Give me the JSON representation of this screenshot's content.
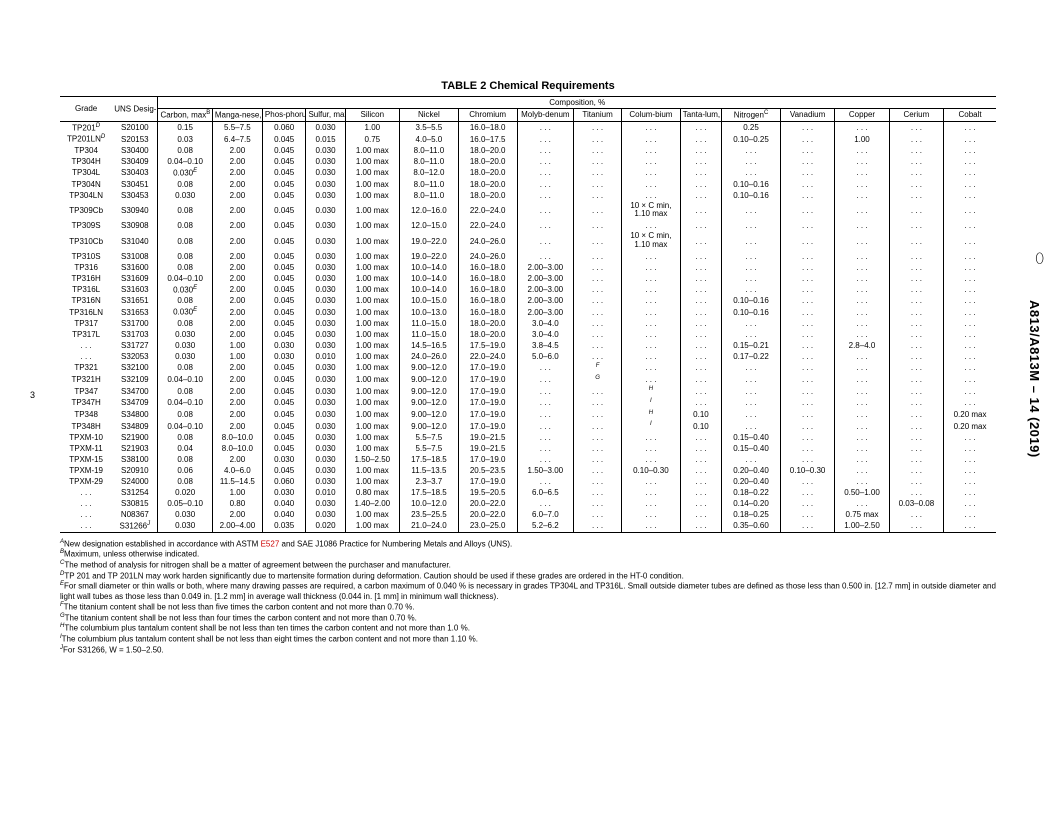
{
  "title": "TABLE 2 Chemical Requirements",
  "comp_header": "Composition, %",
  "sidemark": "A813/A813M – 14 (2019)",
  "side_glyph": "⬯",
  "pagenum": "3",
  "cols": {
    "grade": "Grade",
    "uns": "UNS Desig-nation",
    "carbon": "Carbon, max",
    "mn": "Manga-nese, max",
    "p": "Phos-phorus, max",
    "s": "Sulfur, max",
    "si": "Silicon",
    "ni": "Nickel",
    "cr": "Chromium",
    "mo": "Molyb-denum",
    "ti": "Titanium",
    "cb": "Colum-bium",
    "ta": "Tanta-lum, max",
    "n": "Nitrogen",
    "v": "Vanadium",
    "cu": "Copper",
    "ce": "Cerium",
    "co": "Cobalt"
  },
  "sup": {
    "A": "A",
    "B": "B",
    "C": "C",
    "D": "D",
    "E": "E",
    "F": "F",
    "G": "G",
    "H": "H",
    "I": "I",
    "J": "J"
  },
  "rows": [
    [
      "TP201",
      "D",
      "S20100",
      "0.15",
      "5.5–7.5",
      "0.060",
      "0.030",
      "1.00",
      "3.5–5.5",
      "16.0–18.0",
      ". . .",
      ". . .",
      ". . .",
      ". . .",
      "0.25",
      ". . .",
      ". . .",
      ". . .",
      ". . ."
    ],
    [
      "TP201LN",
      "D",
      "S20153",
      "0.03",
      "6.4–7.5",
      "0.045",
      "0.015",
      "0.75",
      "4.0–5.0",
      "16.0–17.5",
      ". . .",
      ". . .",
      ". . .",
      ". . .",
      "0.10–0.25",
      ". . .",
      "1.00",
      ". . .",
      ". . ."
    ],
    [
      "TP304",
      "",
      "S30400",
      "0.08",
      "2.00",
      "0.045",
      "0.030",
      "1.00 max",
      "8.0–11.0",
      "18.0–20.0",
      ". . .",
      ". . .",
      ". . .",
      ". . .",
      ". . .",
      ". . .",
      ". . .",
      ". . .",
      ". . ."
    ],
    [
      "TP304H",
      "",
      "S30409",
      "0.04–0.10",
      "2.00",
      "0.045",
      "0.030",
      "1.00 max",
      "8.0–11.0",
      "18.0–20.0",
      ". . .",
      ". . .",
      ". . .",
      ". . .",
      ". . .",
      ". . .",
      ". . .",
      ". . .",
      ". . ."
    ],
    [
      "TP304L",
      "",
      "S30403",
      "0.030",
      "E",
      "2.00",
      "0.045",
      "0.030",
      "1.00 max",
      "8.0–12.0",
      "18.0–20.0",
      ". . .",
      ". . .",
      ". . .",
      ". . .",
      ". . .",
      ". . .",
      ". . .",
      ". . .",
      ". . ."
    ],
    [
      "TP304N",
      "",
      "S30451",
      "0.08",
      "2.00",
      "0.045",
      "0.030",
      "1.00 max",
      "8.0–11.0",
      "18.0–20.0",
      ". . .",
      ". . .",
      ". . .",
      ". . .",
      "0.10–0.16",
      ". . .",
      ". . .",
      ". . .",
      ". . ."
    ],
    [
      "TP304LN",
      "",
      "S30453",
      "0.030",
      "2.00",
      "0.045",
      "0.030",
      "1.00 max",
      "8.0–11.0",
      "18.0–20.0",
      ". . .",
      ". . .",
      ". . .",
      ". . .",
      "0.10–0.16",
      ". . .",
      ". . .",
      ". . .",
      ". . ."
    ],
    [
      "TP309Cb",
      "",
      "S30940",
      "0.08",
      "2.00",
      "0.045",
      "0.030",
      "1.00 max",
      "12.0–16.0",
      "22.0–24.0",
      ". . .",
      ". . .",
      "10 × C min, 1.10 max",
      ". . .",
      ". . .",
      ". . .",
      ". . .",
      ". . .",
      ". . ."
    ],
    [
      "TP309S",
      "",
      "S30908",
      "0.08",
      "2.00",
      "0.045",
      "0.030",
      "1.00 max",
      "12.0–15.0",
      "22.0–24.0",
      ". . .",
      ". . .",
      ". . .",
      ". . .",
      ". . .",
      ". . .",
      ". . .",
      ". . .",
      ". . ."
    ],
    [
      "TP310Cb",
      "",
      "S31040",
      "0.08",
      "2.00",
      "0.045",
      "0.030",
      "1.00 max",
      "19.0–22.0",
      "24.0–26.0",
      ". . .",
      ". . .",
      "10 × C min, 1.10 max",
      ". . .",
      ". . .",
      ". . .",
      ". . .",
      ". . .",
      ". . ."
    ],
    [
      "TP310S",
      "",
      "S31008",
      "0.08",
      "2.00",
      "0.045",
      "0.030",
      "1.00 max",
      "19.0–22.0",
      "24.0–26.0",
      ". . .",
      ". . .",
      ". . .",
      ". . .",
      ". . .",
      ". . .",
      ". . .",
      ". . .",
      ". . ."
    ],
    [
      "TP316",
      "",
      "S31600",
      "0.08",
      "2.00",
      "0.045",
      "0.030",
      "1.00 max",
      "10.0–14.0",
      "16.0–18.0",
      "2.00–3.00",
      ". . .",
      ". . .",
      ". . .",
      ". . .",
      ". . .",
      ". . .",
      ". . .",
      ". . ."
    ],
    [
      "TP316H",
      "",
      "S31609",
      "0.04–0.10",
      "2.00",
      "0.045",
      "0.030",
      "1.00 max",
      "10.0–14.0",
      "16.0–18.0",
      "2.00–3.00",
      ". . .",
      ". . .",
      ". . .",
      ". . .",
      ". . .",
      ". . .",
      ". . .",
      ". . ."
    ],
    [
      "TP316L",
      "",
      "S31603",
      "0.030",
      "E",
      "2.00",
      "0.045",
      "0.030",
      "1.00 max",
      "10.0–14.0",
      "16.0–18.0",
      "2.00–3.00",
      ". . .",
      ". . .",
      ". . .",
      ". . .",
      ". . .",
      ". . .",
      ". . .",
      ". . ."
    ],
    [
      "TP316N",
      "",
      "S31651",
      "0.08",
      "2.00",
      "0.045",
      "0.030",
      "1.00 max",
      "10.0–15.0",
      "16.0–18.0",
      "2.00–3.00",
      ". . .",
      ". . .",
      ". . .",
      "0.10–0.16",
      ". . .",
      ". . .",
      ". . .",
      ". . ."
    ],
    [
      "TP316LN",
      "",
      "S31653",
      "0.030",
      "E",
      "2.00",
      "0.045",
      "0.030",
      "1.00 max",
      "10.0–13.0",
      "16.0–18.0",
      "2.00–3.00",
      ". . .",
      ". . .",
      ". . .",
      "0.10–0.16",
      ". . .",
      ". . .",
      ". . .",
      ". . ."
    ],
    [
      "TP317",
      "",
      "S31700",
      "0.08",
      "2.00",
      "0.045",
      "0.030",
      "1.00 max",
      "11.0–15.0",
      "18.0–20.0",
      "3.0–4.0",
      ". . .",
      ". . .",
      ". . .",
      ". . .",
      ". . .",
      ". . .",
      ". . .",
      ". . ."
    ],
    [
      "TP317L",
      "",
      "S31703",
      "0.030",
      "2.00",
      "0.045",
      "0.030",
      "1.00 max",
      "11.0–15.0",
      "18.0–20.0",
      "3.0–4.0",
      ". . .",
      ". . .",
      ". . .",
      ". . .",
      ". . .",
      ". . .",
      ". . .",
      ". . ."
    ],
    [
      ". . .",
      "",
      "S31727",
      "0.030",
      "1.00",
      "0.030",
      "0.030",
      "1.00 max",
      "14.5–16.5",
      "17.5–19.0",
      "3.8–4.5",
      ". . .",
      ". . .",
      ". . .",
      "0.15–0.21",
      ". . .",
      "2.8–4.0",
      ". . .",
      ". . ."
    ],
    [
      ". . .",
      "",
      "S32053",
      "0.030",
      "1.00",
      "0.030",
      "0.010",
      "1.00 max",
      "24.0–26.0",
      "22.0–24.0",
      "5.0–6.0",
      ". . .",
      ". . .",
      ". . .",
      "0.17–0.22",
      ". . .",
      ". . .",
      ". . .",
      ". . ."
    ],
    [
      "TP321",
      "",
      "S32100",
      "0.08",
      "2.00",
      "0.045",
      "0.030",
      "1.00 max",
      "9.00–12.0",
      "17.0–19.0",
      ". . .",
      "F",
      ". . .",
      ". . .",
      ". . .",
      ". . .",
      ". . .",
      ". . .",
      ". . ."
    ],
    [
      "TP321H",
      "",
      "S32109",
      "0.04–0.10",
      "2.00",
      "0.045",
      "0.030",
      "1.00 max",
      "9.00–12.0",
      "17.0–19.0",
      ". . .",
      "G",
      ". . .",
      ". . .",
      ". . .",
      ". . .",
      ". . .",
      ". . .",
      ". . ."
    ],
    [
      "TP347",
      "",
      "S34700",
      "0.08",
      "2.00",
      "0.045",
      "0.030",
      "1.00 max",
      "9.00–12.0",
      "17.0–19.0",
      ". . .",
      ". . .",
      "H",
      ". . .",
      ". . .",
      ". . .",
      ". . .",
      ". . .",
      ". . ."
    ],
    [
      "TP347H",
      "",
      "S34709",
      "0.04–0.10",
      "2.00",
      "0.045",
      "0.030",
      "1.00 max",
      "9.00–12.0",
      "17.0–19.0",
      ". . .",
      ". . .",
      "I",
      ". . .",
      ". . .",
      ". . .",
      ". . .",
      ". . .",
      ". . ."
    ],
    [
      "TP348",
      "",
      "S34800",
      "0.08",
      "2.00",
      "0.045",
      "0.030",
      "1.00 max",
      "9.00–12.0",
      "17.0–19.0",
      ". . .",
      ". . .",
      "H",
      "0.10",
      ". . .",
      ". . .",
      ". . .",
      ". . .",
      "0.20 max"
    ],
    [
      "TP348H",
      "",
      "S34809",
      "0.04–0.10",
      "2.00",
      "0.045",
      "0.030",
      "1.00 max",
      "9.00–12.0",
      "17.0–19.0",
      ". . .",
      ". . .",
      "I",
      "0.10",
      ". . .",
      ". . .",
      ". . .",
      ". . .",
      "0.20 max"
    ],
    [
      "TPXM-10",
      "",
      "S21900",
      "0.08",
      "8.0–10.0",
      "0.045",
      "0.030",
      "1.00 max",
      "5.5–7.5",
      "19.0–21.5",
      ". . .",
      ". . .",
      ". . .",
      ". . .",
      "0.15–0.40",
      ". . .",
      ". . .",
      ". . .",
      ". . ."
    ],
    [
      "TPXM-11",
      "",
      "S21903",
      "0.04",
      "8.0–10.0",
      "0.045",
      "0.030",
      "1.00 max",
      "5.5–7.5",
      "19.0–21.5",
      ". . .",
      ". . .",
      ". . .",
      ". . .",
      "0.15–0.40",
      ". . .",
      ". . .",
      ". . .",
      ". . ."
    ],
    [
      "TPXM-15",
      "",
      "S38100",
      "0.08",
      "2.00",
      "0.030",
      "0.030",
      "1.50–2.50",
      "17.5–18.5",
      "17.0–19.0",
      ". . .",
      ". . .",
      ". . .",
      ". . .",
      ". . .",
      ". . .",
      ". . .",
      ". . .",
      ". . ."
    ],
    [
      "TPXM-19",
      "",
      "S20910",
      "0.06",
      "4.0–6.0",
      "0.045",
      "0.030",
      "1.00 max",
      "11.5–13.5",
      "20.5–23.5",
      "1.50–3.00",
      ". . .",
      "0.10–0.30",
      ". . .",
      "0.20–0.40",
      "0.10–0.30",
      ". . .",
      ". . .",
      ". . ."
    ],
    [
      "TPXM-29",
      "",
      "S24000",
      "0.08",
      "11.5–14.5",
      "0.060",
      "0.030",
      "1.00 max",
      "2.3–3.7",
      "17.0–19.0",
      ". . .",
      ". . .",
      ". . .",
      ". . .",
      "0.20–0.40",
      ". . .",
      ". . .",
      ". . .",
      ". . ."
    ],
    [
      ". . .",
      "",
      "S31254",
      "0.020",
      "1.00",
      "0.030",
      "0.010",
      "0.80 max",
      "17.5–18.5",
      "19.5–20.5",
      "6.0–6.5",
      ". . .",
      ". . .",
      ". . .",
      "0.18–0.22",
      ". . .",
      "0.50–1.00",
      ". . .",
      ". . ."
    ],
    [
      ". . .",
      "",
      "S30815",
      "0.05–0.10",
      "0.80",
      "0.040",
      "0.030",
      "1.40–2.00",
      "10.0–12.0",
      "20.0–22.0",
      ". . .",
      ". . .",
      ". . .",
      ". . .",
      "0.14–0.20",
      ". . .",
      ". . .",
      "0.03–0.08",
      ". . ."
    ],
    [
      ". . .",
      "",
      "N08367",
      "0.030",
      "2.00",
      "0.040",
      "0.030",
      "1.00 max",
      "23.5–25.5",
      "20.0–22.0",
      "6.0–7.0",
      ". . .",
      ". . .",
      ". . .",
      "0.18–0.25",
      ". . .",
      "0.75 max",
      ". . .",
      ". . ."
    ],
    [
      ". . .",
      "",
      "S31266",
      "J",
      "0.030",
      "2.00–4.00",
      "0.035",
      "0.020",
      "1.00 max",
      "21.0–24.0",
      "23.0–25.0",
      "5.2–6.2",
      ". . .",
      ". . .",
      ". . .",
      "0.35–0.60",
      ". . .",
      "1.00–2.50",
      ". . .",
      ". . ."
    ]
  ],
  "special_carbon_sup_rows": [
    4,
    13,
    15
  ],
  "special_uns_sup_rows": [
    34
  ],
  "cb_multiline_rows": [
    7,
    9
  ],
  "ti_letter_rows": {
    "20": "F",
    "21": "G"
  },
  "cb_letter_rows": {
    "22": "H",
    "23": "I",
    "24": "H",
    "25": "I"
  },
  "footnotes": [
    {
      "sup": "A",
      "text": "New designation established in accordance with ASTM ",
      "link": "E527",
      "text2": " and SAE J1086 Practice for Numbering Metals and Alloys (UNS)."
    },
    {
      "sup": "B",
      "text": "Maximum, unless otherwise indicated."
    },
    {
      "sup": "C",
      "text": "The method of analysis for nitrogen shall be a matter of agreement between the purchaser and manufacturer."
    },
    {
      "sup": "D",
      "text": "TP 201 and TP 201LN may work harden significantly due to martensite formation during deformation. Caution should be used if these grades are ordered in the HT-0 condition."
    },
    {
      "sup": "E",
      "text": "For small diameter or thin walls or both, where many drawing passes are required, a carbon maximum of 0.040 % is necessary in grades TP304L and TP316L. Small outside diameter tubes are defined as those less than 0.500 in. [12.7 mm] in outside diameter and light wall tubes as those less than 0.049 in. [1.2 mm] in average wall thickness (0.044 in. [1 mm] in minimum wall thickness)."
    },
    {
      "sup": "F",
      "text": "The titanium content shall be not less than five times the carbon content and not more than 0.70 %."
    },
    {
      "sup": "G",
      "text": "The titanium content shall be not less than four times the carbon content and not more than 0.70 %."
    },
    {
      "sup": "H",
      "text": "The columbium plus tantalum content shall be not less than ten times the carbon content and not more than 1.0 %."
    },
    {
      "sup": "I",
      "text": "The columbium plus tantalum content shall be not less than eight times the carbon content and not more than 1.10 %."
    },
    {
      "sup": "J",
      "text": "For S31266, W = 1.50–2.50."
    }
  ]
}
